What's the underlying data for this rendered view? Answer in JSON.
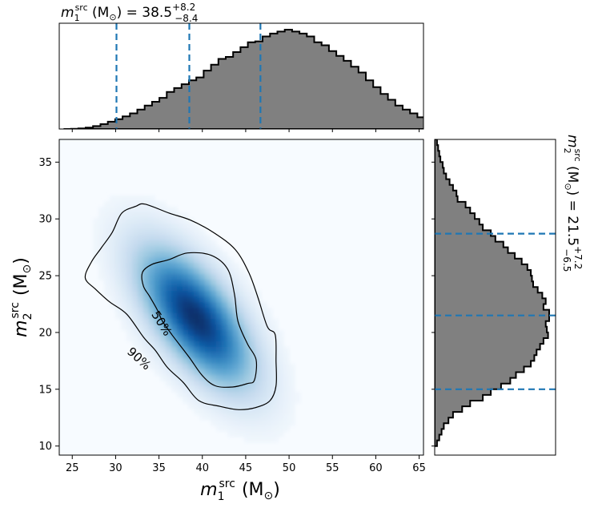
{
  "chart_data": [
    {
      "id": "joint",
      "type": "heatmap",
      "description_source": "2D posterior density of source-frame component masses",
      "xlabel": {
        "main": "m",
        "sup": "src",
        "sub": "1",
        "unit": "(M",
        "unit_sub": "⊙",
        "close": ")"
      },
      "ylabel": {
        "main": "m",
        "sup": "src",
        "sub": "2",
        "unit": "(M",
        "unit_sub": "⊙",
        "close": ")"
      },
      "xlim": [
        23.5,
        65.5
      ],
      "ylim": [
        9.2,
        37.0
      ],
      "xticks": [
        25,
        30,
        35,
        40,
        45,
        50,
        55,
        60,
        65
      ],
      "yticks": [
        10,
        15,
        20,
        25,
        30,
        35
      ],
      "density_peak": {
        "x": 39.2,
        "y": 21.3
      },
      "colormap": [
        "#f7fbff",
        "#deebf7",
        "#c6dbef",
        "#9ecae1",
        "#6baed6",
        "#4292c6",
        "#2171b5",
        "#08519c",
        "#08306b"
      ],
      "contours": [
        {
          "label": "50%",
          "points": [
            [
              38.3,
              27.0
            ],
            [
              41.0,
              26.8
            ],
            [
              42.9,
              25.6
            ],
            [
              43.7,
              23.4
            ],
            [
              44.1,
              21.0
            ],
            [
              45.2,
              19.0
            ],
            [
              46.2,
              17.6
            ],
            [
              46.0,
              15.8
            ],
            [
              45.2,
              15.5
            ],
            [
              43.5,
              15.2
            ],
            [
              41.5,
              15.3
            ],
            [
              40.0,
              16.2
            ],
            [
              38.5,
              17.8
            ],
            [
              36.5,
              19.8
            ],
            [
              35.4,
              21.0
            ],
            [
              34.8,
              22.0
            ],
            [
              33.9,
              23.2
            ],
            [
              33.2,
              24.1
            ],
            [
              33.1,
              25.3
            ],
            [
              34.2,
              26.0
            ],
            [
              36.1,
              26.4
            ]
          ]
        },
        {
          "label": "90%",
          "points": [
            [
              33.4,
              31.3
            ],
            [
              36.2,
              30.5
            ],
            [
              38.6,
              29.9
            ],
            [
              41.3,
              28.8
            ],
            [
              43.8,
              27.3
            ],
            [
              45.4,
              25.2
            ],
            [
              46.4,
              23.1
            ],
            [
              47.5,
              20.5
            ],
            [
              48.4,
              19.8
            ],
            [
              48.5,
              17.5
            ],
            [
              48.5,
              15.3
            ],
            [
              47.8,
              14.0
            ],
            [
              46.2,
              13.4
            ],
            [
              44.2,
              13.2
            ],
            [
              42.0,
              13.5
            ],
            [
              39.6,
              14.0
            ],
            [
              37.8,
              15.6
            ],
            [
              36.0,
              16.9
            ],
            [
              34.6,
              18.4
            ],
            [
              33.2,
              19.6
            ],
            [
              31.3,
              21.6
            ],
            [
              29.3,
              22.7
            ],
            [
              27.7,
              23.8
            ],
            [
              26.5,
              24.8
            ],
            [
              27.2,
              26.2
            ],
            [
              28.3,
              27.4
            ],
            [
              29.6,
              28.8
            ],
            [
              30.7,
              30.5
            ],
            [
              32.3,
              31.1
            ]
          ]
        }
      ],
      "contour_labels": [
        {
          "text": "50%",
          "x": 35.3,
          "y": 20.8,
          "rotate": 58
        },
        {
          "text": "90%",
          "x": 32.7,
          "y": 17.7,
          "rotate": 42
        }
      ]
    },
    {
      "id": "marginal_m1",
      "type": "bar",
      "histtype": "step-filled",
      "fill": "#808080",
      "edge": "#000000",
      "bin_width": 0.85,
      "x_start": 24.0,
      "values": [
        0.0,
        0.002,
        0.006,
        0.014,
        0.03,
        0.05,
        0.075,
        0.1,
        0.13,
        0.16,
        0.2,
        0.24,
        0.28,
        0.32,
        0.38,
        0.42,
        0.46,
        0.5,
        0.53,
        0.6,
        0.66,
        0.72,
        0.74,
        0.79,
        0.84,
        0.89,
        0.9,
        0.95,
        0.98,
        1.0,
        1.02,
        1.0,
        0.98,
        0.95,
        0.89,
        0.86,
        0.8,
        0.75,
        0.7,
        0.64,
        0.58,
        0.5,
        0.43,
        0.36,
        0.3,
        0.24,
        0.2,
        0.16,
        0.12,
        0.1,
        0.08,
        0.06,
        0.05,
        0.04,
        0.03,
        0.02,
        0.015,
        0.01,
        0.008,
        0.005,
        0.003,
        0.002,
        0.001,
        0.001
      ],
      "quantile_lines": [
        30.1,
        38.5,
        46.7
      ],
      "title": {
        "prefix": "m",
        "sup": "src",
        "sub": "1",
        "unit": " (M",
        "unit_sub": "⊙",
        "close": ") = ",
        "median": "38.5",
        "plus": "+8.2",
        "minus": "−8.4"
      }
    },
    {
      "id": "marginal_m2",
      "type": "bar",
      "orientation": "horizontal",
      "histtype": "step-filled",
      "fill": "#808080",
      "edge": "#000000",
      "bin_width": 0.5,
      "y_start": 10.0,
      "values": [
        0.02,
        0.04,
        0.06,
        0.08,
        0.12,
        0.16,
        0.24,
        0.31,
        0.42,
        0.49,
        0.58,
        0.66,
        0.71,
        0.78,
        0.84,
        0.87,
        0.89,
        0.92,
        0.95,
        0.99,
        0.98,
        0.97,
        1.0,
        1.0,
        0.95,
        0.97,
        0.94,
        0.9,
        0.86,
        0.85,
        0.84,
        0.81,
        0.76,
        0.7,
        0.64,
        0.6,
        0.53,
        0.49,
        0.42,
        0.39,
        0.35,
        0.31,
        0.27,
        0.2,
        0.19,
        0.16,
        0.13,
        0.1,
        0.08,
        0.07,
        0.05,
        0.04,
        0.03,
        0.02,
        0.015,
        0.01
      ],
      "quantile_lines": [
        15.0,
        21.5,
        28.7
      ],
      "title": {
        "prefix": "m",
        "sup": "src",
        "sub": "2",
        "unit": " (M",
        "unit_sub": "⊙",
        "close": ") = ",
        "median": "21.5",
        "plus": "+7.2",
        "minus": "−6.5"
      }
    }
  ],
  "colors": {
    "quantile_line": "#1f77b4",
    "hist_fill": "#808080",
    "contour": "#000000"
  }
}
